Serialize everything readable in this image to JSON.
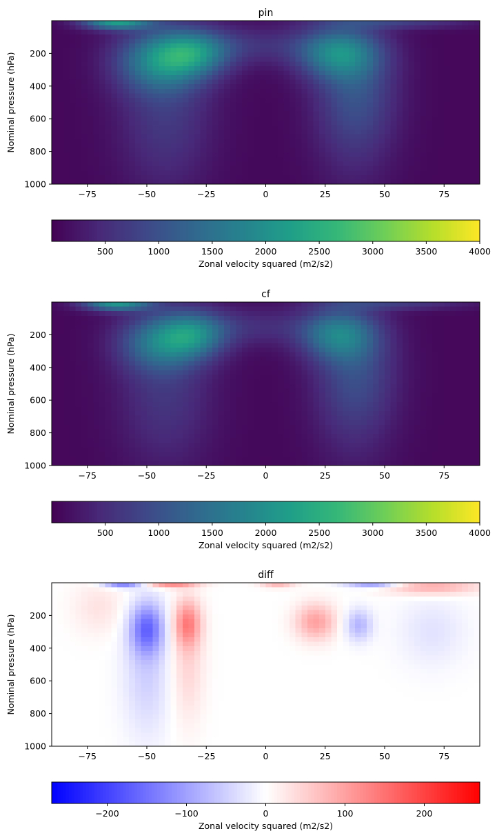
{
  "chart_data": [
    {
      "type": "heatmap",
      "title": "pin",
      "xlabel": "",
      "ylabel": "Nominal pressure (hPa)",
      "xlim": [
        -90,
        90
      ],
      "ylim": [
        1000,
        0
      ],
      "xticks": [
        -75,
        -50,
        -25,
        0,
        25,
        50,
        75
      ],
      "yticks": [
        200,
        400,
        600,
        800,
        1000
      ],
      "colormap": "viridis",
      "clim": [
        0,
        4000
      ],
      "colorbar": {
        "label": "Zonal velocity squared (m2/s2)",
        "ticks": [
          500,
          1000,
          1500,
          2000,
          2500,
          3000,
          3500,
          4000
        ],
        "orientation": "horizontal",
        "placement": "bottom"
      },
      "features": [
        {
          "lat": -63,
          "p": 10,
          "value": 2000,
          "lat_width": 10,
          "p_width": 30
        },
        {
          "lat": -45,
          "p": 250,
          "value": 1350,
          "lat_width": 13,
          "p_width": 130
        },
        {
          "lat": -30,
          "p": 200,
          "value": 1350,
          "lat_width": 11,
          "p_width": 100
        },
        {
          "lat": -42,
          "p": 550,
          "value": 600,
          "lat_width": 14,
          "p_width": 350
        },
        {
          "lat": 30,
          "p": 200,
          "value": 1450,
          "lat_width": 12,
          "p_width": 110
        },
        {
          "lat": 38,
          "p": 400,
          "value": 750,
          "lat_width": 12,
          "p_width": 250
        },
        {
          "lat": 37,
          "p": 700,
          "value": 300,
          "lat_width": 12,
          "p_width": 300
        },
        {
          "lat": -5,
          "p": 150,
          "value": 450,
          "lat_width": 22,
          "p_width": 80
        },
        {
          "lat": 55,
          "p": 15,
          "value": 600,
          "lat_width": 22,
          "p_width": 25
        }
      ]
    },
    {
      "type": "heatmap",
      "title": "cf",
      "xlabel": "",
      "ylabel": "Nominal pressure (hPa)",
      "xlim": [
        -90,
        90
      ],
      "ylim": [
        1000,
        0
      ],
      "xticks": [
        -75,
        -50,
        -25,
        0,
        25,
        50,
        75
      ],
      "yticks": [
        200,
        400,
        600,
        800,
        1000
      ],
      "colormap": "viridis",
      "clim": [
        0,
        4000
      ],
      "colorbar": {
        "label": "Zonal velocity squared (m2/s2)",
        "ticks": [
          500,
          1000,
          1500,
          2000,
          2500,
          3000,
          3500,
          4000
        ],
        "orientation": "horizontal",
        "placement": "bottom"
      },
      "features": [
        {
          "lat": -63,
          "p": 10,
          "value": 1900,
          "lat_width": 10,
          "p_width": 30
        },
        {
          "lat": -45,
          "p": 250,
          "value": 1200,
          "lat_width": 12,
          "p_width": 120
        },
        {
          "lat": -30,
          "p": 200,
          "value": 1300,
          "lat_width": 10,
          "p_width": 100
        },
        {
          "lat": -42,
          "p": 550,
          "value": 550,
          "lat_width": 14,
          "p_width": 330
        },
        {
          "lat": 30,
          "p": 200,
          "value": 1300,
          "lat_width": 11,
          "p_width": 110
        },
        {
          "lat": 38,
          "p": 400,
          "value": 700,
          "lat_width": 12,
          "p_width": 250
        },
        {
          "lat": 37,
          "p": 700,
          "value": 280,
          "lat_width": 12,
          "p_width": 300
        },
        {
          "lat": -5,
          "p": 150,
          "value": 430,
          "lat_width": 22,
          "p_width": 80
        },
        {
          "lat": 55,
          "p": 15,
          "value": 550,
          "lat_width": 22,
          "p_width": 25
        }
      ]
    },
    {
      "type": "heatmap",
      "title": "diff",
      "xlabel": "",
      "ylabel": "Nominal pressure (hPa)",
      "xlim": [
        -90,
        90
      ],
      "ylim": [
        1000,
        0
      ],
      "xticks": [
        -75,
        -50,
        -25,
        0,
        25,
        50,
        75
      ],
      "yticks": [
        200,
        400,
        600,
        800,
        1000
      ],
      "colormap": "bwr",
      "clim": [
        -270,
        270
      ],
      "colorbar": {
        "label": "Zonal velocity squared (m2/s2)",
        "ticks": [
          -200,
          -100,
          0,
          100,
          200
        ],
        "orientation": "horizontal",
        "placement": "bottom"
      },
      "features": [
        {
          "lat": -50,
          "p": 280,
          "value": -140,
          "lat_width": 5,
          "p_width": 110
        },
        {
          "lat": -50,
          "p": 550,
          "value": -50,
          "lat_width": 7,
          "p_width": 280
        },
        {
          "lat": -33,
          "p": 250,
          "value": 120,
          "lat_width": 4,
          "p_width": 100
        },
        {
          "lat": -33,
          "p": 500,
          "value": 45,
          "lat_width": 5,
          "p_width": 250
        },
        {
          "lat": 21,
          "p": 240,
          "value": 100,
          "lat_width": 6,
          "p_width": 80
        },
        {
          "lat": 39,
          "p": 260,
          "value": -80,
          "lat_width": 4,
          "p_width": 70
        },
        {
          "lat": -70,
          "p": 150,
          "value": 30,
          "lat_width": 8,
          "p_width": 120
        },
        {
          "lat": 70,
          "p": 300,
          "value": -30,
          "lat_width": 10,
          "p_width": 150
        },
        {
          "lat": -60,
          "p": 5,
          "value": -150,
          "lat_width": 6,
          "p_width": 18
        },
        {
          "lat": -40,
          "p": 5,
          "value": 130,
          "lat_width": 8,
          "p_width": 18
        },
        {
          "lat": 5,
          "p": 5,
          "value": 80,
          "lat_width": 5,
          "p_width": 18
        },
        {
          "lat": 45,
          "p": 5,
          "value": -120,
          "lat_width": 8,
          "p_width": 18
        },
        {
          "lat": 70,
          "p": 25,
          "value": 90,
          "lat_width": 14,
          "p_width": 35
        }
      ]
    }
  ]
}
